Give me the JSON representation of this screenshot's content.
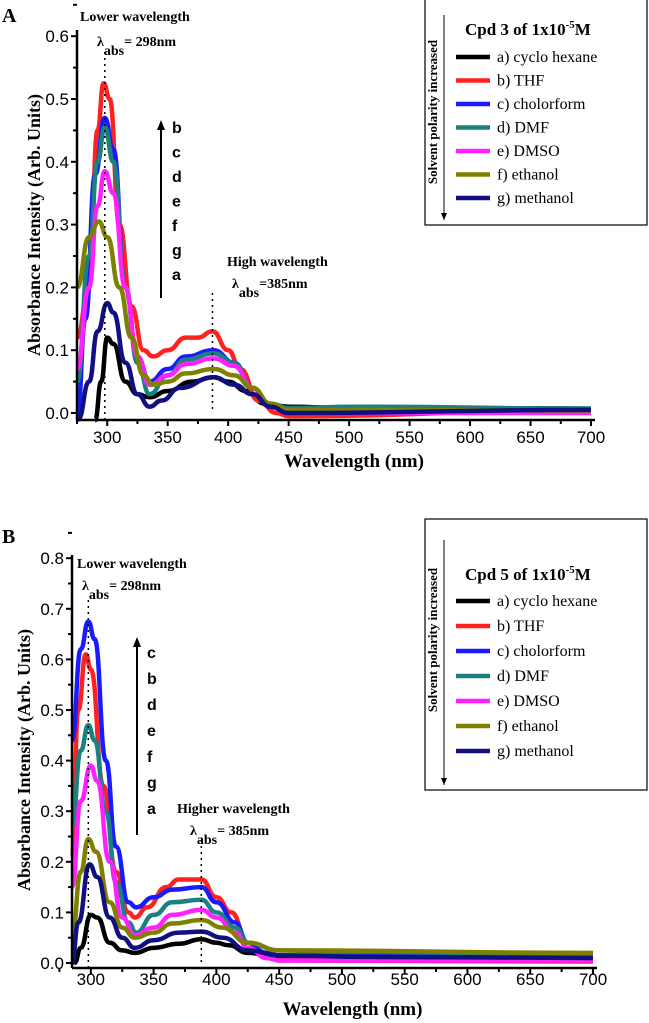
{
  "colors": {
    "a": "#000000",
    "b": "#ff2020",
    "c": "#1a1aff",
    "d": "#1a8080",
    "e": "#ff20ff",
    "f": "#808000",
    "g": "#101080"
  },
  "chart_data": [
    {
      "type": "line",
      "panel_label": "A",
      "xlabel": "Wavelength (nm)",
      "ylabel": "Absorbance Intensity (Arb. Units)",
      "xlim": [
        275,
        700
      ],
      "ylim": [
        -0.012,
        0.6
      ],
      "xticks": [
        300,
        350,
        400,
        450,
        500,
        550,
        600,
        650,
        700
      ],
      "yticks": [
        0.0,
        0.1,
        0.2,
        0.3,
        0.4,
        0.5,
        0.6
      ],
      "legend": {
        "title_main": "Cpd 3 of 1x10",
        "title_sup": "-5",
        "title_end": "M",
        "side_label": "Solvent polarity increased",
        "placement": "top-right"
      },
      "annotations": {
        "low_title": "Lower wavelength",
        "low_lambda": "λ",
        "low_sub": "abs",
        "low_value": "= 298nm",
        "low_x": 298,
        "high_title": "High wavelength",
        "high_lambda": "λ",
        "high_sub": "abs",
        "high_value": "=385nm",
        "high_x": 387,
        "order_letters": [
          "b",
          "c",
          "d",
          "e",
          "f",
          "g",
          "a"
        ]
      },
      "series": [
        {
          "key": "a",
          "name": "a)  cyclo hexane",
          "x": [
            290,
            295,
            300,
            305,
            315,
            325,
            335,
            350,
            370,
            388,
            400,
            415,
            430,
            450,
            500,
            580,
            700
          ],
          "y": [
            -0.02,
            0.05,
            0.12,
            0.11,
            0.05,
            0.03,
            0.025,
            0.035,
            0.05,
            0.057,
            0.05,
            0.035,
            0.015,
            0.01,
            0.008,
            0.008,
            0.007
          ]
        },
        {
          "key": "b",
          "name": "b) THF",
          "x": [
            275,
            285,
            292,
            297,
            302,
            310,
            320,
            330,
            338,
            350,
            365,
            375,
            387,
            400,
            410,
            425,
            440,
            450,
            700
          ],
          "y": [
            0.12,
            0.2,
            0.45,
            0.525,
            0.5,
            0.3,
            0.17,
            0.1,
            0.09,
            0.1,
            0.12,
            0.12,
            0.13,
            0.1,
            0.07,
            0.02,
            0,
            -0.005,
            0.005
          ]
        },
        {
          "key": "c",
          "name": "c) cholorform",
          "x": [
            275,
            282,
            290,
            298,
            305,
            315,
            325,
            335,
            350,
            365,
            388,
            405,
            420,
            435,
            450,
            700
          ],
          "y": [
            -0.02,
            0.15,
            0.38,
            0.47,
            0.42,
            0.2,
            0.09,
            0.05,
            0.07,
            0.09,
            0.1,
            0.08,
            0.04,
            0.01,
            0,
            0.003
          ]
        },
        {
          "key": "d",
          "name": "d) DMF",
          "x": [
            275,
            285,
            292,
            298,
            305,
            315,
            325,
            335,
            350,
            365,
            388,
            405,
            420,
            435,
            450,
            505,
            700
          ],
          "y": [
            0.05,
            0.25,
            0.4,
            0.455,
            0.4,
            0.2,
            0.08,
            0.03,
            0.06,
            0.085,
            0.095,
            0.08,
            0.04,
            0.015,
            0.008,
            0.01,
            0.007
          ]
        },
        {
          "key": "e",
          "name": "e) DMSO",
          "x": [
            275,
            285,
            292,
            298,
            305,
            315,
            325,
            335,
            350,
            365,
            388,
            405,
            420,
            435,
            450,
            700
          ],
          "y": [
            0.07,
            0.2,
            0.33,
            0.385,
            0.35,
            0.2,
            0.09,
            0.045,
            0.06,
            0.078,
            0.087,
            0.075,
            0.04,
            0.01,
            0,
            0
          ]
        },
        {
          "key": "f",
          "name": "f) ethanol",
          "x": [
            275,
            285,
            293,
            300,
            310,
            320,
            330,
            338,
            350,
            365,
            388,
            405,
            420,
            435,
            450,
            700
          ],
          "y": [
            0.2,
            0.28,
            0.305,
            0.28,
            0.2,
            0.12,
            0.06,
            0.045,
            0.05,
            0.063,
            0.07,
            0.06,
            0.04,
            0.015,
            0.005,
            0.004
          ]
        },
        {
          "key": "g",
          "name": "g) methanol",
          "x": [
            276,
            285,
            292,
            300,
            305,
            315,
            325,
            335,
            345,
            360,
            388,
            405,
            420,
            435,
            450,
            700
          ],
          "y": [
            -0.01,
            0.05,
            0.13,
            0.175,
            0.16,
            0.08,
            0.03,
            0.01,
            0.02,
            0.04,
            0.057,
            0.045,
            0.03,
            0.01,
            0,
            0.005
          ]
        }
      ]
    },
    {
      "type": "line",
      "panel_label": "B",
      "xlabel": "Wavelength (nm)",
      "ylabel": "Absorbance Intensity (Arb. Units)",
      "xlim": [
        285,
        700
      ],
      "ylim": [
        0,
        0.8
      ],
      "xticks": [
        300,
        350,
        400,
        450,
        500,
        550,
        600,
        650,
        700
      ],
      "yticks": [
        0.0,
        0.1,
        0.2,
        0.3,
        0.4,
        0.5,
        0.6,
        0.7,
        0.8
      ],
      "legend": {
        "title_main": "Cpd 5 of 1x10",
        "title_sup": "-5",
        "title_end": "M",
        "side_label": "Solvent polarity increased",
        "placement": "top-right"
      },
      "annotations": {
        "low_title": "Lower wavelength",
        "low_lambda": "λ",
        "low_sub": "abs",
        "low_value": "= 298nm",
        "low_x": 298,
        "high_title": "Higher wavelength",
        "high_lambda": "λ",
        "high_sub": "abs",
        "high_value": "= 385nm",
        "high_x": 388,
        "order_letters": [
          "c",
          "b",
          "d",
          "e",
          "f",
          "g",
          "a"
        ]
      },
      "series": [
        {
          "key": "a",
          "name": "a)  cyclo hexane",
          "x": [
            287,
            292,
            300,
            305,
            315,
            325,
            335,
            350,
            370,
            388,
            400,
            410,
            425,
            450,
            700
          ],
          "y": [
            0,
            0.03,
            0.095,
            0.09,
            0.04,
            0.025,
            0.02,
            0.03,
            0.038,
            0.047,
            0.04,
            0.035,
            0.02,
            0.012,
            0.012
          ]
        },
        {
          "key": "b",
          "name": "b) THF",
          "x": [
            285,
            290,
            296,
            300,
            310,
            320,
            330,
            335,
            345,
            360,
            370,
            388,
            400,
            412,
            425,
            440,
            450,
            700
          ],
          "y": [
            0.21,
            0.5,
            0.61,
            0.58,
            0.35,
            0.18,
            0.1,
            0.09,
            0.11,
            0.15,
            0.165,
            0.165,
            0.13,
            0.1,
            0.04,
            0.01,
            0.005,
            0.003
          ]
        },
        {
          "key": "c",
          "name": "c) cholorform",
          "x": [
            285,
            292,
            298,
            303,
            312,
            320,
            330,
            336,
            350,
            365,
            388,
            400,
            415,
            425,
            440,
            450,
            700
          ],
          "y": [
            0.44,
            0.62,
            0.675,
            0.64,
            0.4,
            0.23,
            0.12,
            0.11,
            0.13,
            0.145,
            0.15,
            0.12,
            0.08,
            0.04,
            0.02,
            0.015,
            0.012
          ]
        },
        {
          "key": "d",
          "name": "d) DMF",
          "x": [
            285,
            292,
            298,
            303,
            312,
            320,
            330,
            336,
            350,
            365,
            388,
            400,
            415,
            425,
            450,
            500,
            700
          ],
          "y": [
            0.27,
            0.42,
            0.47,
            0.44,
            0.3,
            0.16,
            0.08,
            0.06,
            0.095,
            0.12,
            0.125,
            0.1,
            0.07,
            0.04,
            0.025,
            0.022,
            0.018
          ]
        },
        {
          "key": "e",
          "name": "e) DMSO",
          "x": [
            285,
            292,
            300,
            305,
            315,
            325,
            335,
            350,
            365,
            388,
            400,
            415,
            425,
            440,
            450,
            700
          ],
          "y": [
            0.15,
            0.32,
            0.39,
            0.36,
            0.2,
            0.09,
            0.055,
            0.07,
            0.095,
            0.105,
            0.09,
            0.06,
            0.03,
            0.01,
            0.005,
            0.005
          ]
        },
        {
          "key": "f",
          "name": "f) ethanol",
          "x": [
            285,
            292,
            298,
            304,
            315,
            325,
            335,
            350,
            365,
            388,
            405,
            425,
            450,
            700
          ],
          "y": [
            0.05,
            0.18,
            0.245,
            0.22,
            0.12,
            0.07,
            0.05,
            0.06,
            0.078,
            0.085,
            0.07,
            0.04,
            0.025,
            0.02
          ]
        },
        {
          "key": "g",
          "name": "g) methanol",
          "x": [
            285,
            290,
            299,
            305,
            315,
            325,
            335,
            350,
            370,
            388,
            405,
            425,
            450,
            520,
            700
          ],
          "y": [
            0,
            0.08,
            0.195,
            0.17,
            0.09,
            0.05,
            0.03,
            0.045,
            0.06,
            0.062,
            0.05,
            0.025,
            0.015,
            0.012,
            0.01
          ]
        }
      ]
    }
  ]
}
